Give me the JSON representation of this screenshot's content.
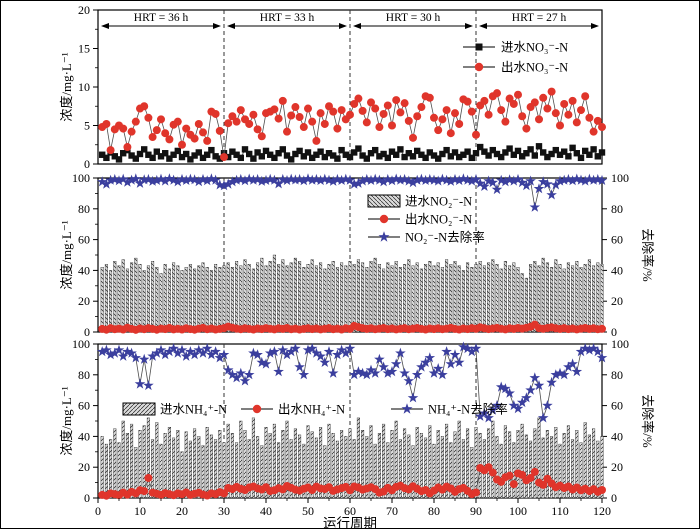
{
  "colors": {
    "influent_marker": "#111111",
    "effluent_marker": "#e0352b",
    "removal_marker": "#3b3f9e",
    "bar_fill": "#dcdcdc",
    "bar_edge": "#2a2a2a",
    "line": "#4d4d4d",
    "divider": "#333333"
  },
  "x_axis": {
    "label": "运行周期",
    "min": 0,
    "max": 120,
    "major_ticks": [
      0,
      10,
      20,
      30,
      40,
      50,
      60,
      70,
      80,
      90,
      100,
      110,
      120
    ],
    "minor_step": 5,
    "x_start": 1
  },
  "hrt_annotations": [
    {
      "label": "HRT = 36 h",
      "from": 0,
      "to": 30
    },
    {
      "label": "HRT = 33 h",
      "from": 30,
      "to": 60
    },
    {
      "label": "HRT = 30 h",
      "from": 60,
      "to": 90
    },
    {
      "label": "HRT = 27 h",
      "from": 90,
      "to": 120
    }
  ],
  "dividers": [
    30,
    60,
    90
  ],
  "chart_data": [
    {
      "type": "line",
      "ylabel": "浓度/mg·L⁻¹",
      "ylim": [
        0,
        20
      ],
      "yticks": [
        0,
        5,
        10,
        15,
        20
      ],
      "y_minor_step": 2.5,
      "y2label": null,
      "legend_position": "top-right",
      "series": [
        {
          "name": "进水NO₃⁻-N",
          "type": "scatter",
          "marker": "square",
          "color": "#111111",
          "values": [
            1.2,
            0.8,
            1.5,
            1.0,
            0.6,
            1.4,
            1.8,
            1.1,
            0.7,
            1.3,
            1.9,
            1.2,
            0.8,
            1.6,
            1.0,
            1.4,
            0.7,
            1.2,
            1.7,
            0.9,
            1.3,
            0.6,
            1.1,
            1.5,
            0.8,
            1.2,
            1.8,
            1.0,
            0.7,
            1.4,
            0.9,
            1.6,
            1.2,
            0.8,
            1.9,
            1.3,
            0.7,
            1.5,
            1.0,
            1.7,
            1.2,
            0.8,
            1.4,
            1.9,
            1.1,
            0.6,
            1.3,
            1.7,
            1.0,
            1.5,
            0.8,
            1.2,
            1.6,
            0.9,
            1.4,
            1.1,
            0.7,
            1.8,
            1.2,
            0.9,
            1.5,
            2.0,
            1.1,
            0.7,
            1.4,
            1.8,
            1.0,
            1.3,
            0.8,
            1.6,
            1.2,
            1.9,
            0.9,
            1.4,
            1.0,
            1.7,
            1.2,
            0.8,
            1.5,
            1.1,
            0.7,
            1.3,
            1.8,
            1.0,
            1.5,
            0.9,
            1.2,
            1.6,
            0.8,
            1.4,
            2.2,
            1.6,
            1.1,
            1.8,
            1.3,
            0.9,
            1.5,
            2.0,
            1.2,
            1.7,
            1.0,
            1.4,
            1.9,
            1.1,
            2.3,
            1.5,
            0.9,
            1.3,
            1.8,
            1.2,
            1.6,
            1.0,
            2.1,
            1.4,
            0.8,
            1.7,
            1.2,
            1.9,
            1.0,
            1.5
          ]
        },
        {
          "name": "出水NO₃⁻-N",
          "type": "scatter",
          "marker": "circle",
          "color": "#e0352b",
          "values": [
            4.8,
            5.2,
            1.8,
            4.5,
            5.0,
            4.6,
            2.2,
            4.2,
            5.5,
            7.2,
            7.5,
            6.0,
            3.5,
            4.4,
            5.8,
            4.0,
            3.2,
            5.1,
            5.5,
            2.5,
            4.6,
            3.8,
            3.3,
            5.2,
            4.1,
            3.0,
            6.8,
            6.5,
            4.3,
            0.9,
            5.3,
            6.2,
            5.5,
            7.0,
            5.8,
            5.2,
            6.4,
            4.5,
            3.6,
            6.6,
            6.8,
            7.1,
            5.9,
            8.2,
            4.2,
            6.3,
            7.4,
            6.1,
            4.8,
            7.2,
            5.5,
            3.0,
            6.6,
            5.2,
            7.5,
            6.8,
            4.6,
            7.0,
            5.8,
            6.4,
            7.8,
            8.5,
            6.9,
            5.4,
            8.0,
            7.2,
            4.8,
            6.5,
            7.6,
            5.0,
            8.3,
            6.7,
            7.9,
            5.6,
            3.4,
            6.2,
            7.4,
            8.8,
            8.6,
            6.0,
            4.4,
            5.8,
            7.0,
            4.0,
            6.6,
            5.2,
            8.4,
            8.1,
            6.8,
            3.8,
            7.6,
            8.2,
            6.4,
            8.8,
            9.2,
            7.0,
            5.5,
            8.5,
            7.8,
            9.0,
            6.2,
            4.6,
            7.4,
            8.0,
            5.8,
            8.6,
            7.2,
            9.4,
            6.6,
            5.0,
            7.8,
            6.4,
            8.2,
            5.4,
            7.0,
            8.8,
            6.0,
            4.2,
            5.6,
            4.8
          ]
        }
      ]
    },
    {
      "type": "bar+line",
      "ylabel": "浓度/mg·L⁻¹",
      "ylim": [
        0,
        100
      ],
      "yticks": [
        0,
        20,
        40,
        60,
        80,
        100
      ],
      "y_minor_step": 10,
      "y2label": "去除率/%",
      "y2lim": [
        0,
        100
      ],
      "y2ticks": [
        0,
        20,
        40,
        60,
        80,
        100
      ],
      "legend_position": "middle",
      "series": [
        {
          "name": "进水NO₂⁻-N",
          "type": "bar",
          "hatch": "\\",
          "color": "#dcdcdc",
          "values": [
            42,
            44,
            40,
            46,
            43,
            47,
            41,
            45,
            48,
            44,
            40,
            43,
            46,
            42,
            38,
            44,
            41,
            45,
            43,
            40,
            42,
            44,
            41,
            43,
            45,
            42,
            40,
            44,
            42,
            43,
            45,
            42,
            46,
            43,
            47,
            44,
            41,
            45,
            48,
            43,
            46,
            50,
            44,
            47,
            43,
            45,
            48,
            46,
            42,
            44,
            47,
            43,
            45,
            41,
            44,
            46,
            42,
            45,
            43,
            46,
            44,
            47,
            45,
            42,
            46,
            48,
            44,
            41,
            45,
            43,
            46,
            42,
            44,
            47,
            43,
            45,
            41,
            44,
            46,
            43,
            45,
            42,
            47,
            44,
            46,
            43,
            40,
            45,
            42,
            44,
            46,
            43,
            45,
            47,
            44,
            41,
            46,
            43,
            45,
            42,
            38,
            35,
            44,
            46,
            43,
            48,
            45,
            42,
            47,
            44,
            41,
            45,
            43,
            46,
            42,
            44,
            47,
            43,
            45,
            44
          ]
        },
        {
          "name": "出水NO₂⁻-N",
          "type": "scatter",
          "marker": "circle",
          "color": "#e0352b",
          "values": [
            2.0,
            1.5,
            2.5,
            1.8,
            2.2,
            1.6,
            2.8,
            2.0,
            1.4,
            2.3,
            1.8,
            2.5,
            2.0,
            1.5,
            2.2,
            1.9,
            2.6,
            1.7,
            2.1,
            1.6,
            2.4,
            1.9,
            1.5,
            2.2,
            2.7,
            1.8,
            2.3,
            1.6,
            2.0,
            2.5,
            3.5,
            2.8,
            2.2,
            1.8,
            2.4,
            2.0,
            1.6,
            2.3,
            1.9,
            2.5,
            2.1,
            1.7,
            2.4,
            2.0,
            2.6,
            1.8,
            2.2,
            1.6,
            2.0,
            2.4,
            1.9,
            2.3,
            1.7,
            2.1,
            2.5,
            1.8,
            2.2,
            1.6,
            2.4,
            2.0,
            4.0,
            3.2,
            2.5,
            2.0,
            2.4,
            1.8,
            2.2,
            2.6,
            1.9,
            2.3,
            1.7,
            2.1,
            2.5,
            1.8,
            2.2,
            2.6,
            2.0,
            1.6,
            2.3,
            1.9,
            2.4,
            1.8,
            2.2,
            2.7,
            2.0,
            1.6,
            2.3,
            1.9,
            2.5,
            2.1,
            3.0,
            2.4,
            1.9,
            2.3,
            2.7,
            2.1,
            1.7,
            2.4,
            2.0,
            2.6,
            2.2,
            2.8,
            3.4,
            4.8,
            2.5,
            2.1,
            2.6,
            3.0,
            2.4,
            2.0,
            2.5,
            1.9,
            2.3,
            1.7,
            2.2,
            2.6,
            2.0,
            2.4,
            1.8,
            2.1
          ]
        },
        {
          "name": "NO₂⁻-N去除率",
          "type": "scatter",
          "marker": "star",
          "color": "#3b3f9e",
          "axis": "right",
          "values": [
            97.5,
            96.0,
            98.5,
            99.0,
            98.2,
            99.2,
            97.2,
            98.6,
            99.4,
            96.5,
            98.8,
            99.0,
            97.8,
            98.4,
            99.2,
            98.0,
            99.5,
            98.6,
            97.5,
            99.0,
            98.4,
            99.2,
            98.8,
            97.6,
            99.0,
            98.2,
            99.4,
            98.6,
            95.5,
            95.0,
            96.0,
            97.5,
            98.5,
            99.0,
            98.2,
            99.3,
            98.6,
            99.0,
            97.8,
            98.4,
            99.1,
            98.5,
            96.2,
            99.0,
            98.3,
            99.2,
            98.7,
            99.0,
            98.2,
            99.4,
            98.6,
            99.0,
            98.3,
            99.2,
            98.5,
            97.8,
            99.0,
            98.4,
            99.2,
            98.6,
            96.0,
            96.5,
            98.0,
            99.0,
            98.4,
            99.2,
            98.6,
            97.5,
            99.0,
            98.2,
            99.3,
            98.6,
            99.0,
            98.0,
            97.0,
            98.5,
            99.2,
            98.4,
            99.0,
            98.6,
            98.0,
            99.2,
            98.5,
            97.8,
            99.0,
            98.3,
            99.4,
            98.6,
            98.0,
            99.0,
            96.5,
            94.5,
            98.0,
            97.0,
            92.5,
            98.5,
            97.5,
            98.8,
            98.0,
            99.0,
            97.0,
            95.0,
            98.0,
            81.0,
            93.0,
            97.5,
            96.0,
            89.0,
            95.5,
            98.0,
            98.5,
            99.0,
            98.2,
            99.3,
            98.6,
            98.0,
            99.2,
            98.5,
            99.0,
            98.4
          ]
        }
      ]
    },
    {
      "type": "bar+line",
      "ylabel": "浓度/mg·L⁻¹",
      "ylim": [
        0,
        100
      ],
      "yticks": [
        0,
        20,
        40,
        60,
        80,
        100
      ],
      "y_minor_step": 10,
      "y2label": "去除率/%",
      "y2lim": [
        0,
        100
      ],
      "y2ticks": [
        0,
        20,
        40,
        60,
        80,
        100
      ],
      "legend_position": "inline",
      "series": [
        {
          "name": "进水NH₄⁺-N",
          "type": "bar",
          "hatch": "/",
          "color": "#dcdcdc",
          "values": [
            40,
            35,
            38,
            45,
            36,
            50,
            42,
            48,
            33,
            44,
            47,
            52,
            38,
            49,
            35,
            42,
            46,
            39,
            44,
            30,
            43,
            37,
            45,
            40,
            34,
            46,
            41,
            38,
            44,
            36,
            48,
            42,
            36,
            50,
            44,
            38,
            52,
            40,
            34,
            46,
            42,
            48,
            36,
            44,
            50,
            38,
            45,
            41,
            35,
            47,
            43,
            39,
            46,
            34,
            48,
            42,
            37,
            44,
            40,
            45,
            38,
            52,
            44,
            40,
            47,
            35,
            42,
            48,
            36,
            44,
            50,
            38,
            45,
            41,
            34,
            46,
            42,
            39,
            47,
            35,
            44,
            40,
            48,
            36,
            43,
            50,
            38,
            45,
            33,
            46,
            42,
            38,
            45,
            50,
            40,
            35,
            47,
            43,
            36,
            44,
            48,
            41,
            37,
            45,
            52,
            39,
            44,
            40,
            46,
            35,
            42,
            47,
            38,
            44,
            36,
            49,
            41,
            45,
            37,
            40
          ]
        },
        {
          "name": "出水NH₄⁺-N",
          "type": "scatter",
          "marker": "circle",
          "color": "#e0352b",
          "values": [
            2.0,
            1.5,
            3.0,
            2.5,
            1.8,
            3.5,
            2.2,
            4.0,
            3.0,
            5.0,
            4.5,
            13.0,
            3.5,
            2.8,
            2.0,
            3.2,
            2.5,
            1.8,
            3.0,
            2.4,
            3.6,
            2.0,
            2.8,
            3.4,
            2.2,
            1.6,
            3.0,
            2.5,
            3.8,
            3.0,
            6.5,
            5.8,
            7.2,
            6.0,
            5.2,
            6.8,
            7.5,
            6.2,
            5.5,
            7.0,
            4.5,
            5.0,
            6.4,
            5.6,
            7.8,
            6.6,
            5.4,
            4.8,
            6.0,
            6.8,
            5.2,
            7.4,
            6.2,
            5.8,
            7.0,
            4.6,
            5.6,
            6.4,
            7.2,
            5.0,
            7.5,
            6.8,
            5.4,
            6.2,
            7.0,
            5.8,
            3.5,
            4.2,
            6.6,
            5.0,
            7.2,
            8.0,
            6.4,
            5.6,
            7.6,
            6.0,
            4.4,
            5.2,
            3.0,
            4.8,
            6.8,
            5.4,
            7.4,
            6.2,
            4.0,
            5.8,
            6.6,
            4.6,
            2.5,
            3.6,
            19.5,
            18.0,
            20.0,
            16.5,
            12.0,
            10.5,
            13.5,
            14.5,
            9.0,
            16.0,
            15.0,
            11.5,
            13.0,
            17.0,
            10.0,
            8.5,
            12.5,
            9.5,
            7.0,
            8.0,
            6.5,
            7.5,
            5.5,
            6.8,
            5.0,
            6.0,
            4.5,
            5.8,
            4.0,
            5.2
          ]
        },
        {
          "name": "NH₄⁺-N去除率",
          "type": "scatter",
          "marker": "star",
          "color": "#3b3f9e",
          "axis": "right",
          "values": [
            95,
            96,
            93,
            94,
            96,
            92,
            95,
            94,
            91,
            74,
            90,
            73,
            92,
            94,
            96,
            93,
            95,
            97,
            94,
            96,
            92,
            95,
            93,
            96,
            94,
            97,
            93,
            95,
            91,
            93,
            83,
            80,
            78,
            81,
            76,
            80,
            94,
            93,
            88,
            87,
            94,
            95,
            82,
            96,
            93,
            95,
            97,
            85,
            80,
            96,
            97,
            94,
            92,
            88,
            95,
            81,
            93,
            96,
            94,
            97,
            80,
            82,
            81,
            80,
            83,
            81,
            90,
            85,
            81,
            82,
            87,
            94,
            81,
            76,
            65,
            80,
            85,
            88,
            91,
            81,
            84,
            80,
            95,
            87,
            93,
            88,
            98,
            97,
            95,
            97,
            53,
            55,
            52,
            57,
            60,
            72,
            71,
            68,
            60,
            58,
            62,
            65,
            70,
            78,
            73,
            52,
            60,
            75,
            80,
            81,
            80,
            85,
            87,
            82,
            95,
            97,
            96,
            97,
            95,
            91
          ]
        }
      ]
    }
  ]
}
